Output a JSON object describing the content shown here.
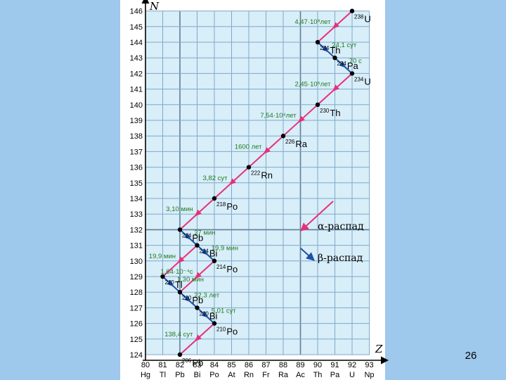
{
  "slide_number": "26",
  "axes": {
    "y_label": "N",
    "x_label": "Z",
    "y_ticks": [
      124,
      125,
      126,
      127,
      128,
      129,
      130,
      131,
      132,
      133,
      134,
      135,
      136,
      137,
      138,
      139,
      140,
      141,
      142,
      143,
      144,
      145,
      146
    ],
    "x_ticks": [
      80,
      81,
      82,
      83,
      84,
      85,
      86,
      87,
      88,
      89,
      90,
      91,
      92,
      93
    ],
    "elements": [
      "Hg",
      "Tl",
      "Pb",
      "Bi",
      "Po",
      "At",
      "Rn",
      "Fr",
      "Ra",
      "Ac",
      "Th",
      "Pa",
      "U",
      "Np"
    ]
  },
  "legend": {
    "alpha": "α-распад",
    "beta": "β-распад"
  },
  "colors": {
    "background": "#9EC8EC",
    "grid_fill": "#D8EEF8",
    "grid_line": "#7FA8CC",
    "alpha": "#E8307A",
    "beta": "#1F4FA8",
    "label_green": "#207A20"
  },
  "nuclides": [
    {
      "Z": 92,
      "N": 146,
      "mass": "238",
      "symbol": "U"
    },
    {
      "Z": 90,
      "N": 144,
      "mass": "234",
      "symbol": "Th"
    },
    {
      "Z": 91,
      "N": 143,
      "mass": "234",
      "symbol": "Pa"
    },
    {
      "Z": 92,
      "N": 142,
      "mass": "234",
      "symbol": "U"
    },
    {
      "Z": 90,
      "N": 140,
      "mass": "230",
      "symbol": "Th"
    },
    {
      "Z": 88,
      "N": 138,
      "mass": "226",
      "symbol": "Ra"
    },
    {
      "Z": 86,
      "N": 136,
      "mass": "222",
      "symbol": "Rn"
    },
    {
      "Z": 84,
      "N": 134,
      "mass": "218",
      "symbol": "Po"
    },
    {
      "Z": 82,
      "N": 132,
      "mass": "214",
      "symbol": "Pb"
    },
    {
      "Z": 83,
      "N": 131,
      "mass": "214",
      "symbol": "Bi"
    },
    {
      "Z": 84,
      "N": 130,
      "mass": "214",
      "symbol": "Po"
    },
    {
      "Z": 81,
      "N": 129,
      "mass": "210",
      "symbol": "Tl"
    },
    {
      "Z": 82,
      "N": 128,
      "mass": "210",
      "symbol": "Pb"
    },
    {
      "Z": 83,
      "N": 127,
      "mass": "210",
      "symbol": "Bi"
    },
    {
      "Z": 84,
      "N": 126,
      "mass": "210",
      "symbol": "Po"
    },
    {
      "Z": 82,
      "N": 124,
      "mass": "206",
      "symbol": "Pb"
    }
  ],
  "decays": [
    {
      "type": "alpha",
      "from": [
        92,
        146
      ],
      "to": [
        90,
        144
      ],
      "label": "4,47·10⁹лет"
    },
    {
      "type": "beta",
      "from": [
        90,
        144
      ],
      "to": [
        91,
        143
      ],
      "label": "24,1 сут"
    },
    {
      "type": "beta",
      "from": [
        91,
        143
      ],
      "to": [
        92,
        142
      ],
      "label": "70 с"
    },
    {
      "type": "alpha",
      "from": [
        92,
        142
      ],
      "to": [
        90,
        140
      ],
      "label": "2,45·10⁵лет"
    },
    {
      "type": "alpha",
      "from": [
        90,
        140
      ],
      "to": [
        88,
        138
      ],
      "label": "7,54·10⁴лет"
    },
    {
      "type": "alpha",
      "from": [
        88,
        138
      ],
      "to": [
        86,
        136
      ],
      "label": "1600 лет"
    },
    {
      "type": "alpha",
      "from": [
        86,
        136
      ],
      "to": [
        84,
        134
      ],
      "label": "3,82 сут"
    },
    {
      "type": "alpha",
      "from": [
        84,
        134
      ],
      "to": [
        82,
        132
      ],
      "label": "3,10 мин"
    },
    {
      "type": "beta",
      "from": [
        82,
        132
      ],
      "to": [
        83,
        131
      ],
      "label": "27 мин"
    },
    {
      "type": "beta",
      "from": [
        83,
        131
      ],
      "to": [
        84,
        130
      ],
      "label": "19,9 мин"
    },
    {
      "type": "alpha",
      "from": [
        83,
        131
      ],
      "to": [
        81,
        129
      ],
      "label": "19,9 мин"
    },
    {
      "type": "alpha",
      "from": [
        84,
        130
      ],
      "to": [
        82,
        128
      ],
      "label": "1,64·10⁻⁴с"
    },
    {
      "type": "beta",
      "from": [
        81,
        129
      ],
      "to": [
        82,
        128
      ],
      "label": "1,30 мин"
    },
    {
      "type": "beta",
      "from": [
        82,
        128
      ],
      "to": [
        83,
        127
      ],
      "label": "22,3 лет"
    },
    {
      "type": "beta",
      "from": [
        83,
        127
      ],
      "to": [
        84,
        126
      ],
      "label": "5,01 сут"
    },
    {
      "type": "alpha",
      "from": [
        84,
        126
      ],
      "to": [
        82,
        124
      ],
      "label": "138,4 сут"
    }
  ]
}
